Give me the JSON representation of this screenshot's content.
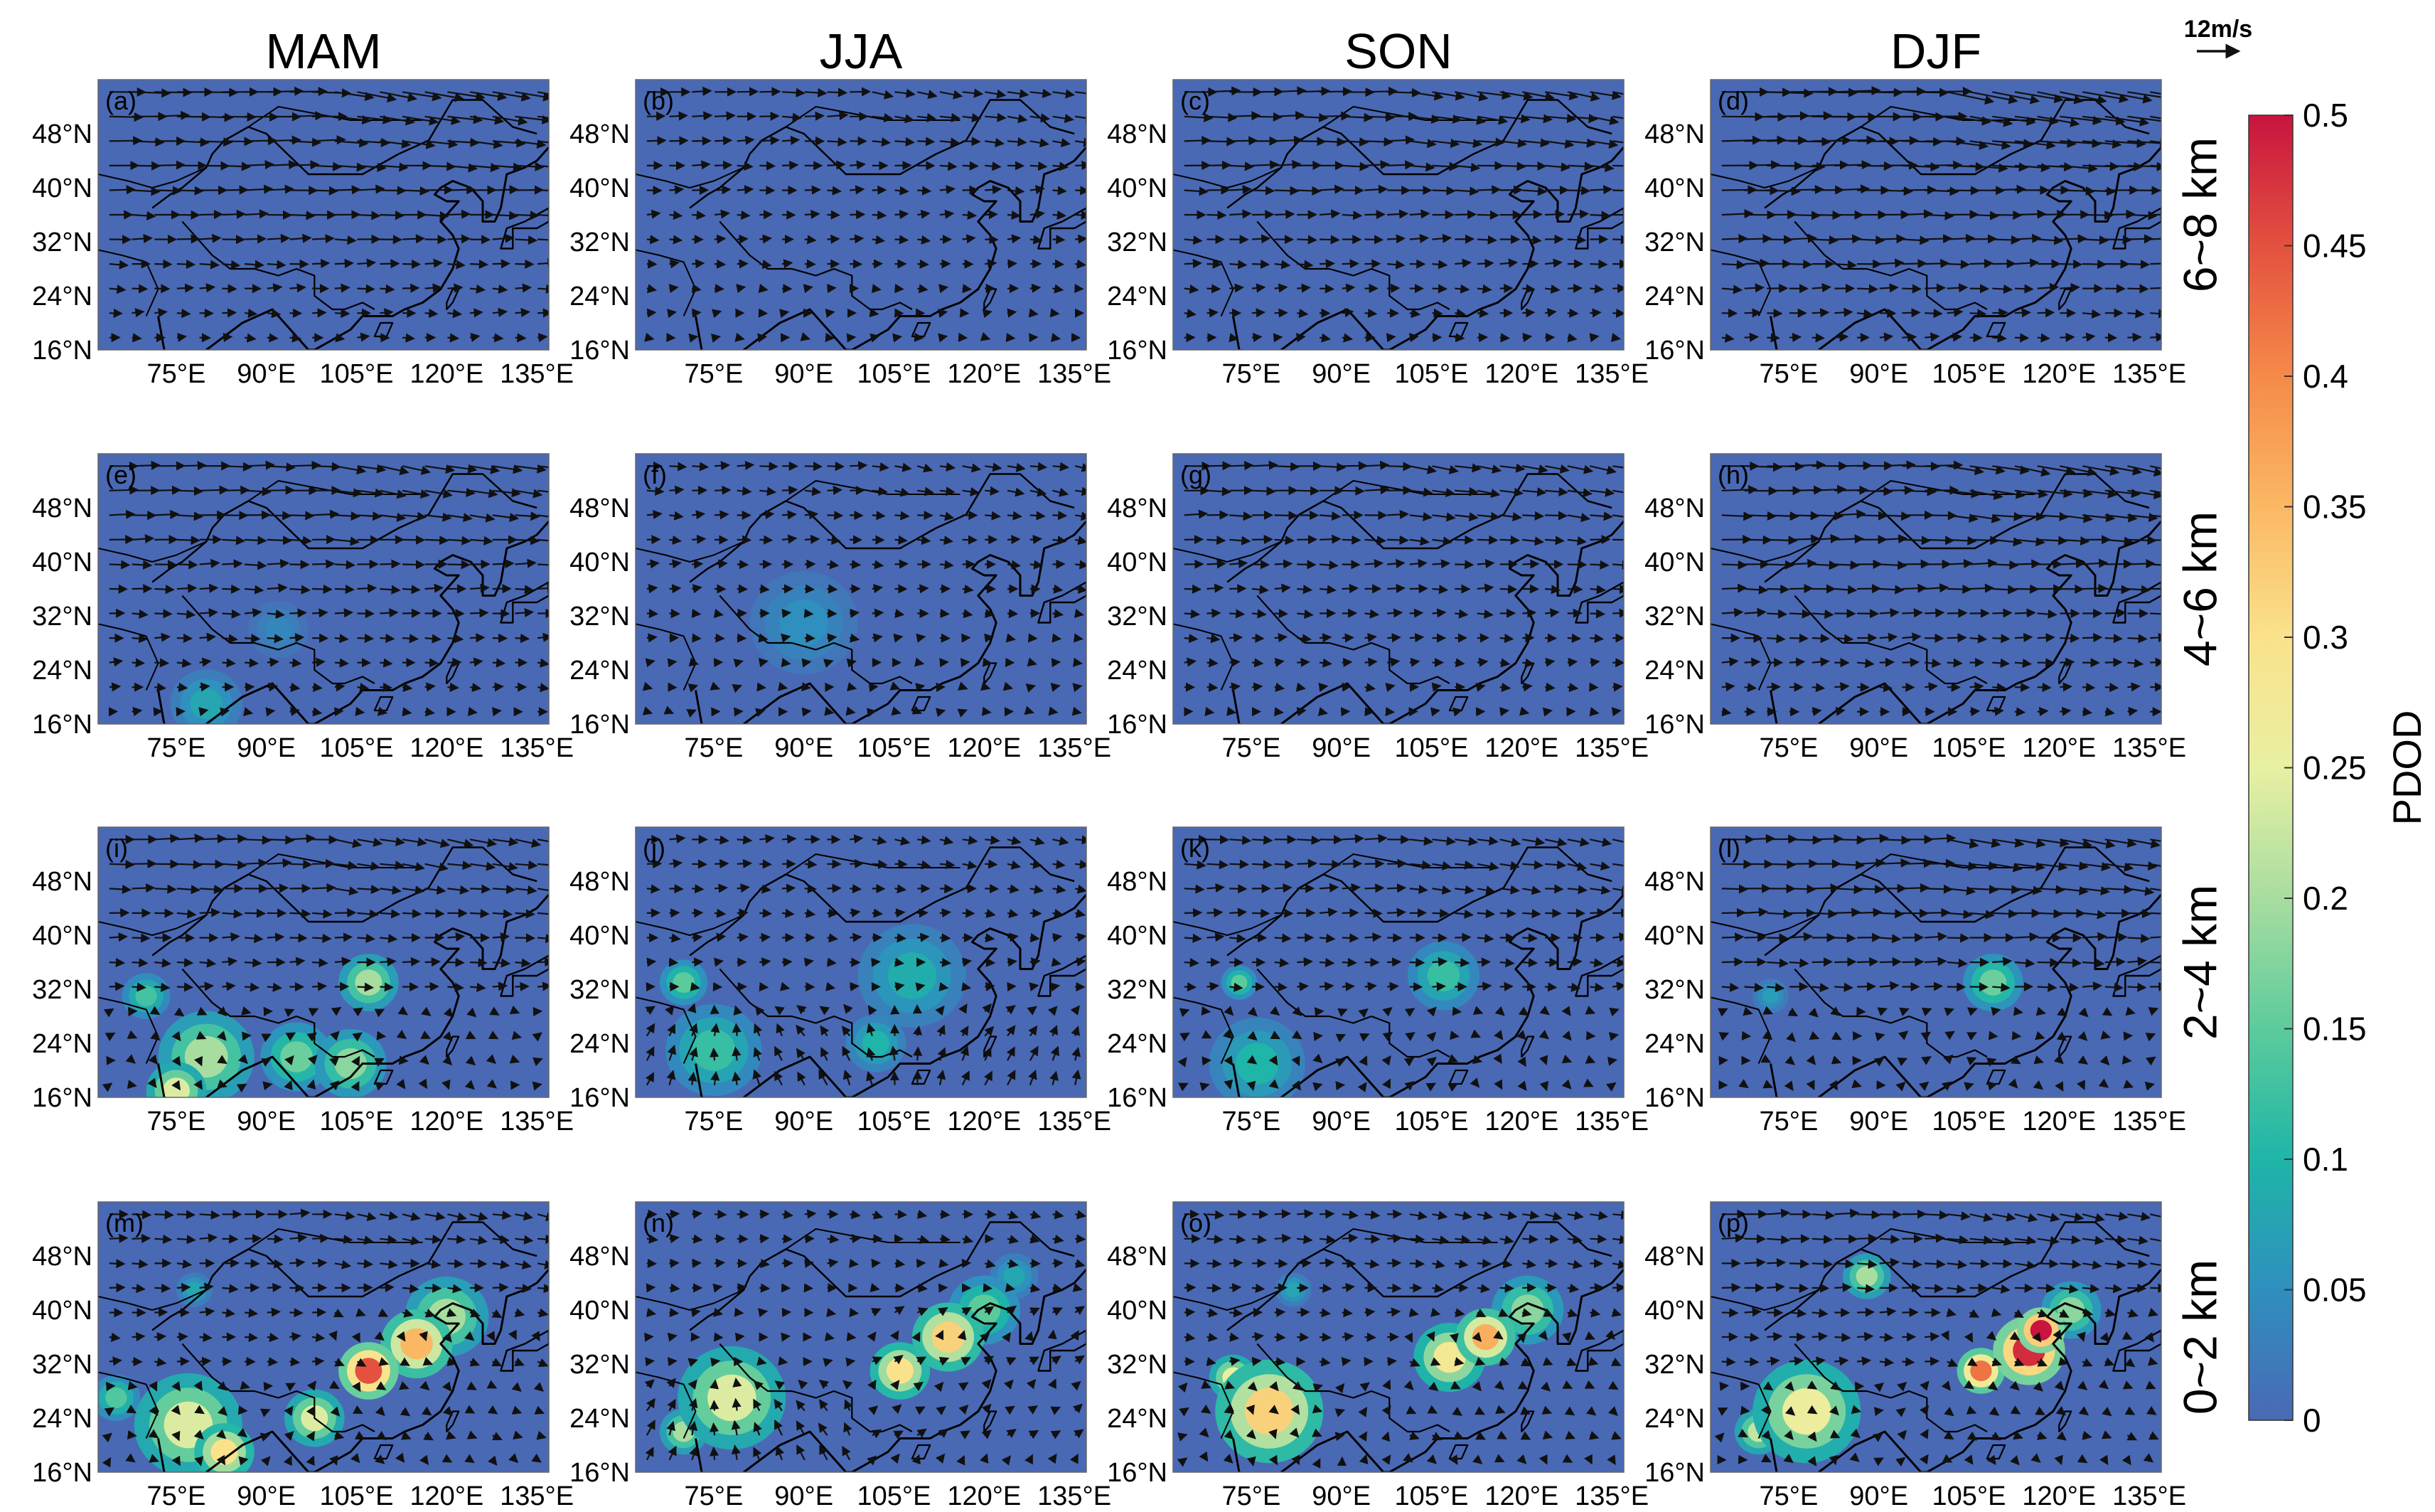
{
  "chart_data": {
    "type": "heatmap",
    "description_fields": {
      "columns": [
        "MAM",
        "JJA",
        "SON",
        "DJF"
      ],
      "rows": [
        "6~8 km",
        "4~6 km",
        "2~4 km",
        "0~2 km"
      ]
    },
    "panel_labels": [
      "(a)",
      "(b)",
      "(c)",
      "(d)",
      "(e)",
      "(f)",
      "(g)",
      "(h)",
      "(i)",
      "(j)",
      "(k)",
      "(l)",
      "(m)",
      "(n)",
      "(o)",
      "(p)"
    ],
    "x_ticks": [
      "75°E",
      "90°E",
      "105°E",
      "120°E",
      "135°E"
    ],
    "x_tick_values": [
      75,
      90,
      105,
      120,
      135
    ],
    "y_ticks": [
      "48°N",
      "40°N",
      "32°N",
      "24°N",
      "16°N"
    ],
    "y_tick_values": [
      48,
      40,
      32,
      24,
      16
    ],
    "xlim": [
      62,
      137
    ],
    "ylim": [
      16,
      56
    ],
    "colorbar": {
      "title": "PDOD",
      "ticks": [
        "0",
        "0.05",
        "0.1",
        "0.15",
        "0.2",
        "0.25",
        "0.3",
        "0.35",
        "0.4",
        "0.45",
        "0.5"
      ],
      "tick_values": [
        0,
        0.05,
        0.1,
        0.15,
        0.2,
        0.25,
        0.3,
        0.35,
        0.4,
        0.45,
        0.5
      ],
      "range": [
        0,
        0.5
      ],
      "colors": [
        "#4a69b4",
        "#2f8fbf",
        "#1fb5a8",
        "#5ccb9c",
        "#a8dda0",
        "#e8f0a2",
        "#fae28b",
        "#fbb864",
        "#f58a49",
        "#e4513f",
        "#c8143f"
      ]
    },
    "reference_vector": {
      "label": "12m/s",
      "value": 12
    },
    "ocean_color": "#4a69b4",
    "hotspots": [
      [],
      [],
      [],
      [],
      [
        {
          "lon": 80,
          "lat": 19,
          "r": 6,
          "v": 0.08
        },
        {
          "lon": 92,
          "lat": 30,
          "r": 5,
          "v": 0.04
        }
      ],
      [
        {
          "lon": 90,
          "lat": 31,
          "r": 9,
          "v": 0.05
        }
      ],
      [],
      [],
      [
        {
          "lon": 80,
          "lat": 22,
          "r": 8,
          "v": 0.2
        },
        {
          "lon": 75,
          "lat": 17,
          "r": 5,
          "v": 0.24
        },
        {
          "lon": 95,
          "lat": 22,
          "r": 6,
          "v": 0.16
        },
        {
          "lon": 104,
          "lat": 21,
          "r": 6,
          "v": 0.18
        },
        {
          "lon": 107,
          "lat": 33,
          "r": 5,
          "v": 0.2
        },
        {
          "lon": 70,
          "lat": 31,
          "r": 4,
          "v": 0.13
        }
      ],
      [
        {
          "lon": 75,
          "lat": 23,
          "r": 8,
          "v": 0.12
        },
        {
          "lon": 70,
          "lat": 33,
          "r": 4,
          "v": 0.15
        },
        {
          "lon": 108,
          "lat": 34,
          "r": 9,
          "v": 0.09
        },
        {
          "lon": 102,
          "lat": 24,
          "r": 5,
          "v": 0.1
        }
      ],
      [
        {
          "lon": 76,
          "lat": 21,
          "r": 8,
          "v": 0.1
        },
        {
          "lon": 73,
          "lat": 33,
          "r": 3,
          "v": 0.15
        },
        {
          "lon": 107,
          "lat": 34,
          "r": 6,
          "v": 0.12
        }
      ],
      [
        {
          "lon": 109,
          "lat": 33,
          "r": 5,
          "v": 0.16
        },
        {
          "lon": 72,
          "lat": 31,
          "r": 3,
          "v": 0.07
        }
      ],
      [
        {
          "lon": 77,
          "lat": 23,
          "r": 9,
          "v": 0.24
        },
        {
          "lon": 83,
          "lat": 19,
          "r": 5,
          "v": 0.3
        },
        {
          "lon": 98,
          "lat": 24,
          "r": 5,
          "v": 0.24
        },
        {
          "lon": 107,
          "lat": 31,
          "r": 5,
          "v": 0.45
        },
        {
          "lon": 115,
          "lat": 35,
          "r": 6,
          "v": 0.35
        },
        {
          "lon": 120,
          "lat": 39,
          "r": 7,
          "v": 0.2
        },
        {
          "lon": 78,
          "lat": 43,
          "r": 3,
          "v": 0.08
        },
        {
          "lon": 65,
          "lat": 27,
          "r": 4,
          "v": 0.14
        }
      ],
      [
        {
          "lon": 78,
          "lat": 27,
          "r": 9,
          "v": 0.24
        },
        {
          "lon": 70,
          "lat": 22,
          "r": 4,
          "v": 0.2
        },
        {
          "lon": 106,
          "lat": 31,
          "r": 5,
          "v": 0.3
        },
        {
          "lon": 114,
          "lat": 36,
          "r": 6,
          "v": 0.32
        },
        {
          "lon": 120,
          "lat": 40,
          "r": 6,
          "v": 0.15
        },
        {
          "lon": 125,
          "lat": 45,
          "r": 4,
          "v": 0.08
        }
      ],
      [
        {
          "lon": 78,
          "lat": 25,
          "r": 9,
          "v": 0.32
        },
        {
          "lon": 72,
          "lat": 30,
          "r": 4,
          "v": 0.25
        },
        {
          "lon": 108,
          "lat": 33,
          "r": 6,
          "v": 0.28
        },
        {
          "lon": 114,
          "lat": 36,
          "r": 5,
          "v": 0.36
        },
        {
          "lon": 121,
          "lat": 40,
          "r": 6,
          "v": 0.18
        },
        {
          "lon": 82,
          "lat": 43,
          "r": 3,
          "v": 0.08
        }
      ],
      [
        {
          "lon": 78,
          "lat": 25,
          "r": 9,
          "v": 0.26
        },
        {
          "lon": 70,
          "lat": 22,
          "r": 4,
          "v": 0.22
        },
        {
          "lon": 107,
          "lat": 31,
          "r": 4,
          "v": 0.42
        },
        {
          "lon": 115,
          "lat": 34,
          "r": 6,
          "v": 0.48
        },
        {
          "lon": 117,
          "lat": 37,
          "r": 4,
          "v": 0.5
        },
        {
          "lon": 122,
          "lat": 40,
          "r": 5,
          "v": 0.18
        },
        {
          "lon": 88,
          "lat": 45,
          "r": 4,
          "v": 0.2
        }
      ]
    ],
    "wind_speed_scale": [
      1.35,
      1.05,
      0.9,
      0.65
    ],
    "wind_season_factor": [
      1.0,
      0.55,
      0.85,
      1.25
    ]
  }
}
